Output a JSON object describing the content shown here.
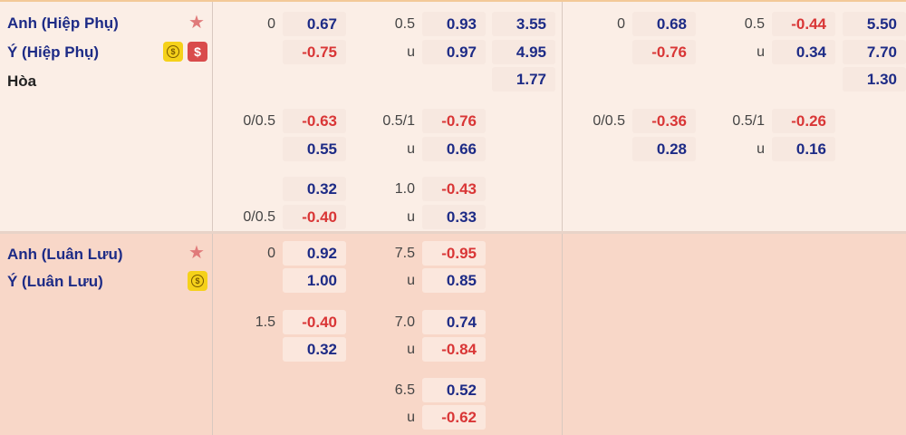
{
  "sections": [
    {
      "teams": [
        "Anh (Hiệp Phụ)",
        "Ý (Hiệp Phụ)",
        "Hòa"
      ],
      "icons": [
        "star-icon",
        "coin-icon",
        "dollar-icon"
      ],
      "cells": {
        "c1": [
          "0",
          "0.67",
          "-0.75",
          "0/0.5",
          "-0.63",
          "0.55",
          "0.32",
          "0/0.5",
          "-0.40"
        ],
        "c2": [
          "0.5",
          "0.93",
          "u",
          "0.97",
          "0.5/1",
          "-0.76",
          "u",
          "0.66",
          "1.0",
          "-0.43",
          "u",
          "0.33"
        ],
        "c3": [
          "3.55",
          "4.95",
          "1.77"
        ],
        "c4": [
          "0",
          "0.68",
          "-0.76",
          "0/0.5",
          "-0.36",
          "0.28"
        ],
        "c5": [
          "0.5",
          "-0.44",
          "u",
          "0.34",
          "0.5/1",
          "-0.26",
          "u",
          "0.16"
        ],
        "c6": [
          "5.50",
          "7.70",
          "1.30"
        ]
      }
    },
    {
      "teams": [
        "Anh (Luân Lưu)",
        "Ý (Luân Lưu)"
      ],
      "cells": {
        "c1": [
          "0",
          "0.92",
          "1.00",
          "1.5",
          "-0.40",
          "0.32"
        ],
        "c2": [
          "7.5",
          "-0.95",
          "u",
          "0.85",
          "7.0",
          "0.74",
          "u",
          "-0.84",
          "6.5",
          "0.52",
          "u",
          "-0.62"
        ]
      }
    }
  ],
  "icon_dollar_symbol": "$",
  "icon_coin_symbol": "$",
  "icon_star_symbol": "★"
}
